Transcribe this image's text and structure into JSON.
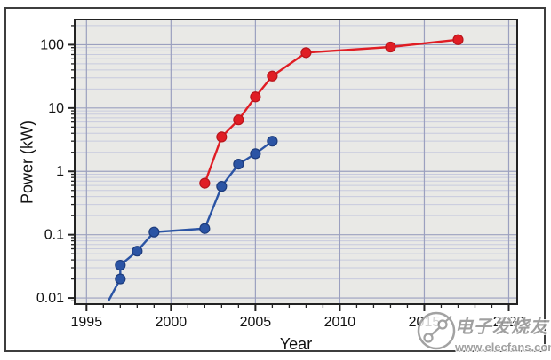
{
  "figure": {
    "watermark": {
      "logo": "plug-cable-icon",
      "brand_text": "电子发烧友",
      "url_text": "www.elecfans.com",
      "color": "#9a9a9a"
    }
  },
  "chart_data": {
    "type": "line",
    "title": "",
    "xlabel": "Year",
    "ylabel": "Power (kW)",
    "legend": "none",
    "grid": {
      "horizontal_minor_log": true,
      "vertical_major": true
    },
    "plot_bg": "#e9e9e6",
    "grid_minor_color": "#c7cade",
    "grid_major_color": "#9ba0bf",
    "axis_color": "#222222",
    "x_axis": {
      "min": 1994.3,
      "max": 2020.5,
      "major_ticks": [
        1995,
        2000,
        2005,
        2010,
        2015,
        2020
      ],
      "tick_labels": [
        "1995",
        "2000",
        "2005",
        "2010",
        "2015",
        "2020"
      ],
      "minor_tick_interval": 1
    },
    "y_axis": {
      "scale": "log",
      "min": 0.008,
      "max": 250,
      "major_ticks": [
        0.01,
        0.1,
        1,
        10,
        100
      ],
      "tick_labels": [
        "0.01",
        "0.1",
        "1",
        "10",
        "100"
      ]
    },
    "series": [
      {
        "name": "red-series",
        "color": "#e01d24",
        "marker_edge": "#b8151b",
        "marker": "circle",
        "points": [
          [
            2002,
            0.65
          ],
          [
            2003,
            3.5
          ],
          [
            2004,
            6.5
          ],
          [
            2005,
            15
          ],
          [
            2006,
            32
          ],
          [
            2008,
            75
          ],
          [
            2013,
            92
          ],
          [
            2017,
            120
          ]
        ]
      },
      {
        "name": "blue-series",
        "color": "#2b54a4",
        "marker_edge": "#1d3c7c",
        "marker": "circle",
        "line_start": [
          1996.3,
          0.009
        ],
        "points": [
          [
            1997,
            0.02
          ],
          [
            1997,
            0.033
          ],
          [
            1998,
            0.055
          ],
          [
            1999,
            0.11
          ],
          [
            2002,
            0.125
          ],
          [
            2003,
            0.58
          ],
          [
            2004,
            1.3
          ],
          [
            2005,
            1.9
          ],
          [
            2006,
            3.0
          ]
        ]
      }
    ]
  }
}
